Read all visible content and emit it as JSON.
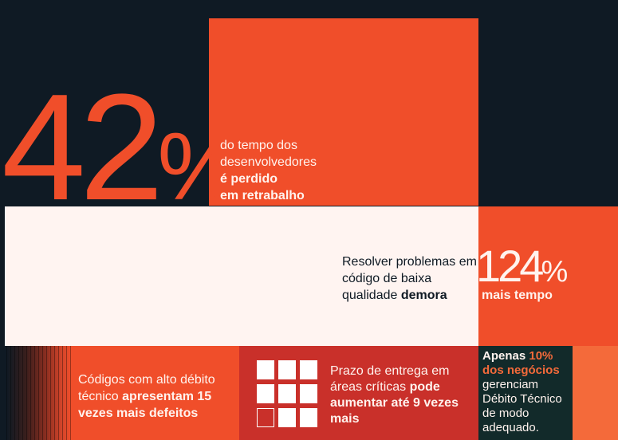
{
  "stat_42": {
    "number": "42",
    "percent": "%",
    "line1": "do tempo dos",
    "line2": "desenvolvedores",
    "bold1": "é perdido",
    "bold2": "em retrabalho"
  },
  "stat_124": {
    "text_pre": "Resolver problemas em código de baixa qualidade ",
    "text_bold": "demora",
    "number": "124",
    "percent": "%",
    "caption": "mais tempo"
  },
  "stat_15x": {
    "text_pre": "Códigos com alto débito técnico ",
    "bold": "apresentam 15 vezes mais defeitos"
  },
  "stat_9x": {
    "text_pre": "Prazo de entrega em áreas críticas ",
    "bold": "pode aumentar até 9 vezes mais"
  },
  "stat_10": {
    "bold_white": "Apenas ",
    "highlight": "10% dos negócios",
    "text": " gerenciam Débito Técnico de modo adequado."
  },
  "colors": {
    "navy": "#0f1a24",
    "orange": "#f04e2a",
    "cream": "#fff4f1",
    "red": "#c9302a",
    "dark_teal": "#122a2a",
    "light_orange": "#f46a3a"
  }
}
